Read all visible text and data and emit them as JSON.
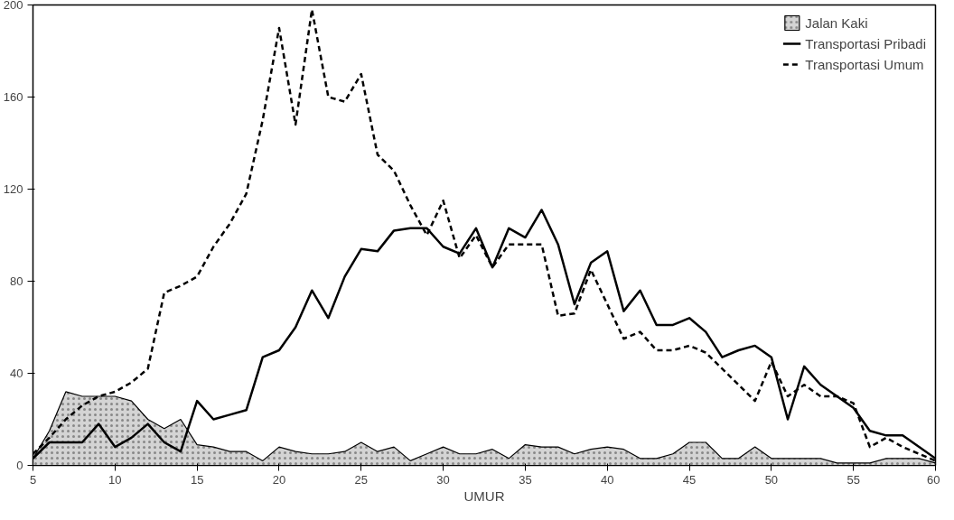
{
  "chart_data": {
    "type": "line",
    "xlabel": "UMUR",
    "x": [
      5,
      6,
      7,
      8,
      9,
      10,
      11,
      12,
      13,
      14,
      15,
      16,
      17,
      18,
      19,
      20,
      21,
      22,
      23,
      24,
      25,
      26,
      27,
      28,
      29,
      30,
      31,
      32,
      33,
      34,
      35,
      36,
      37,
      38,
      39,
      40,
      41,
      42,
      43,
      44,
      45,
      46,
      47,
      48,
      49,
      50,
      51,
      52,
      53,
      54,
      55,
      56,
      57,
      58,
      59,
      60
    ],
    "series": [
      {
        "name": "Jalan Kaki",
        "type": "area",
        "color": "#d4d4d4",
        "values": [
          3,
          15,
          32,
          30,
          30,
          30,
          28,
          20,
          16,
          20,
          9,
          8,
          6,
          6,
          2,
          8,
          6,
          5,
          5,
          6,
          10,
          6,
          8,
          2,
          5,
          8,
          5,
          5,
          7,
          3,
          9,
          8,
          8,
          5,
          7,
          8,
          7,
          3,
          3,
          5,
          10,
          10,
          3,
          3,
          8,
          3,
          3,
          3,
          3,
          1,
          1,
          1,
          3,
          3,
          3,
          1
        ]
      },
      {
        "name": "Transportasi Pribadi",
        "color": "#000000",
        "line_style": "solid",
        "values": [
          3,
          10,
          10,
          10,
          18,
          8,
          12,
          18,
          10,
          6,
          28,
          20,
          22,
          24,
          47,
          50,
          60,
          76,
          64,
          82,
          94,
          93,
          102,
          103,
          103,
          95,
          92,
          103,
          86,
          103,
          99,
          111,
          96,
          70,
          88,
          93,
          67,
          76,
          61,
          61,
          64,
          58,
          47,
          50,
          52,
          47,
          20,
          43,
          35,
          30,
          25,
          15,
          13,
          13,
          8,
          3
        ]
      },
      {
        "name": "Transportasi Umum",
        "color": "#000000",
        "line_style": "dashed",
        "values": [
          5,
          12,
          20,
          26,
          30,
          32,
          36,
          42,
          75,
          78,
          82,
          95,
          105,
          118,
          150,
          190,
          148,
          198,
          160,
          158,
          170,
          135,
          128,
          113,
          100,
          115,
          90,
          100,
          86,
          96,
          96,
          96,
          65,
          66,
          85,
          70,
          55,
          58,
          50,
          50,
          52,
          49,
          42,
          35,
          28,
          45,
          30,
          35,
          30,
          30,
          27,
          8,
          12,
          8,
          5,
          2
        ]
      }
    ],
    "xlim": [
      5,
      60
    ],
    "xticks": [
      5,
      10,
      15,
      20,
      25,
      30,
      35,
      40,
      45,
      50,
      55,
      60
    ],
    "ylim": [
      0,
      200
    ],
    "yticks": [
      0,
      40,
      80,
      120,
      160,
      200
    ],
    "grid": false,
    "legend": "top right"
  }
}
